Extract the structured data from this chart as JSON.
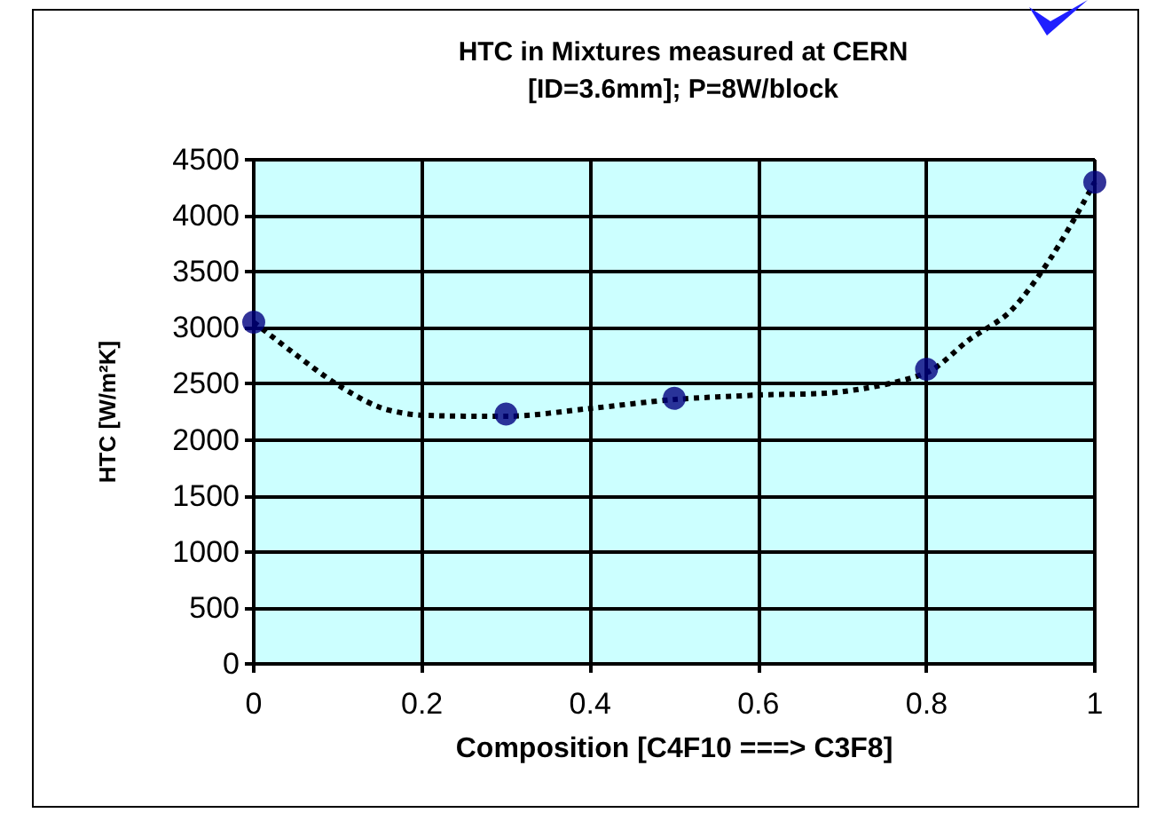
{
  "chart_data": {
    "type": "scatter",
    "title": "HTC in Mixtures measured at CERN\n[ID=3.6mm]; P=8W/block",
    "xlabel": "Composition [C4F10 ===> C3F8]",
    "ylabel": "HTC [W/m²K]",
    "series": [
      {
        "color": "#000080",
        "marker": "circle",
        "x": [
          0,
          0.3,
          0.5,
          0.8,
          1
        ],
        "values": [
          3050,
          2230,
          2370,
          2630,
          4300
        ]
      },
      {
        "type": "line",
        "color": "#000000",
        "marker": "none",
        "line_style": "dotted",
        "x": [
          0,
          0.05,
          0.1,
          0.15,
          0.2,
          0.3,
          0.4,
          0.5,
          0.6,
          0.7,
          0.8,
          0.85,
          0.9,
          0.95,
          1
        ],
        "values": [
          3050,
          2760,
          2490,
          2290,
          2220,
          2210,
          2280,
          2360,
          2400,
          2430,
          2600,
          2890,
          3150,
          3650,
          4300
        ]
      }
    ],
    "xlim": [
      0,
      1
    ],
    "xticks": [
      0,
      0.2,
      0.4,
      0.6,
      0.8,
      1
    ],
    "ylim": [
      0,
      4500
    ],
    "yticks": [
      0,
      500,
      1000,
      1500,
      2000,
      2500,
      3000,
      3500,
      4000,
      4500
    ],
    "grid": true
  }
}
